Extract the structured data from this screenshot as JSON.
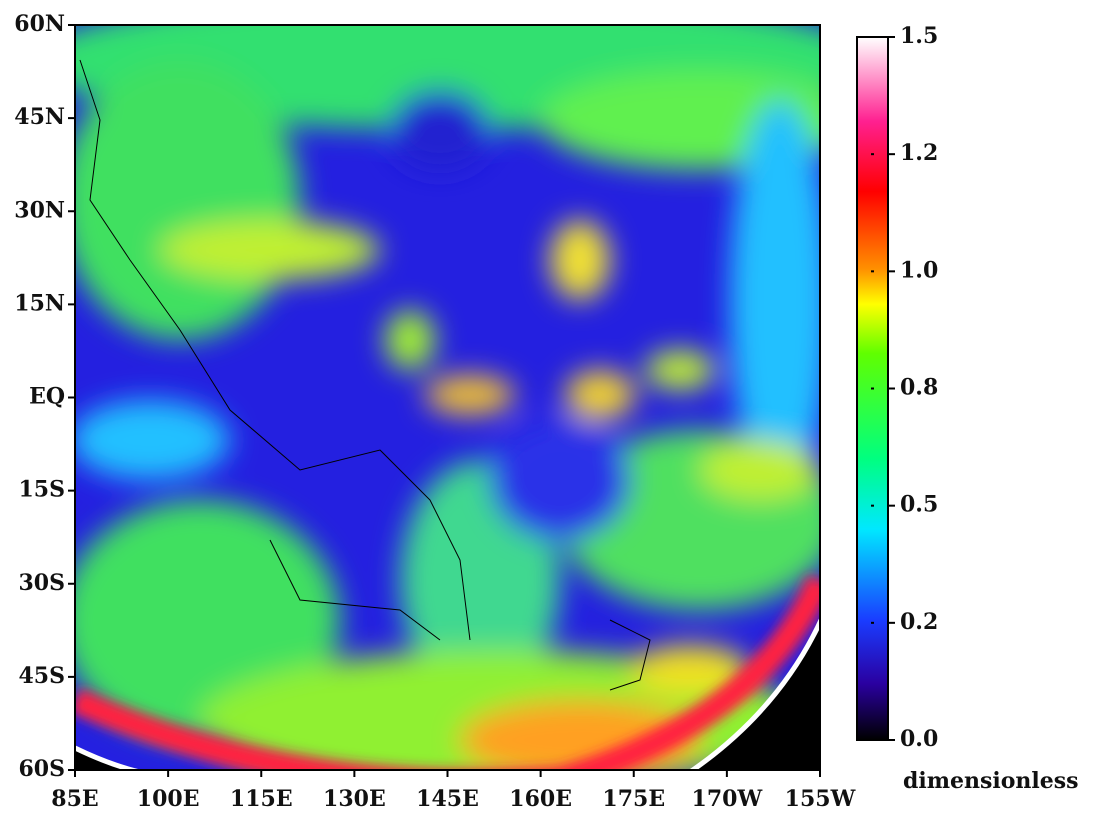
{
  "map": {
    "lat_labels": [
      "60N",
      "45N",
      "30N",
      "15N",
      "EQ",
      "15S",
      "30S",
      "45S",
      "60S"
    ],
    "lon_labels": [
      "85E",
      "100E",
      "115E",
      "130E",
      "145E",
      "160E",
      "175E",
      "170W",
      "155W"
    ],
    "colorbar": {
      "ticks": [
        {
          "value": 0,
          "label": "0.0"
        },
        0.2,
        0.5,
        0.8,
        {
          "value": 1,
          "label": "1.0"
        },
        1.2,
        1.5
      ],
      "unit": "dimensionless"
    }
  }
}
